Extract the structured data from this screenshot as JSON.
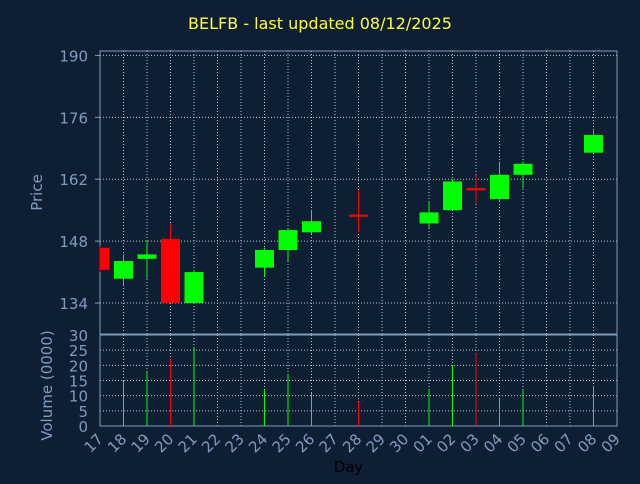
{
  "header": {
    "title": "BELFB - last updated 08/12/2025"
  },
  "colors": {
    "background": "#0f1f33",
    "axis": "#7f9cbf",
    "grid": "#b8c4d2",
    "up": "#00ff00",
    "down": "#ff0000",
    "title": "#ffff33",
    "text": "#7f9cbf"
  },
  "chart_data": {
    "type": "candlestick",
    "title": "BELFB - last updated 08/12/2025",
    "xlabel": "Day",
    "price_axis": {
      "ylabel": "Price",
      "ylim": [
        127,
        191
      ],
      "ticks": [
        134,
        148,
        162,
        176,
        190
      ]
    },
    "volume_axis": {
      "ylabel": "Volume (0000)",
      "ylim": [
        0,
        30
      ],
      "ticks": [
        0,
        5,
        10,
        15,
        20,
        25,
        30
      ]
    },
    "x_tick_labels": [
      "17",
      "18",
      "19",
      "20",
      "21",
      "22",
      "23",
      "24",
      "25",
      "26",
      "27",
      "28",
      "29",
      "30",
      "01",
      "02",
      "03",
      "04",
      "05",
      "06",
      "07",
      "08",
      "09"
    ],
    "grid": true,
    "candles": [
      {
        "day": "17",
        "open": 146.5,
        "high": 147.0,
        "low": 141.0,
        "close": 141.5,
        "volume": 0
      },
      {
        "day": "18",
        "open": 139.5,
        "high": 145.0,
        "low": 138.0,
        "close": 143.5,
        "volume": 15
      },
      {
        "day": "19",
        "open": 144.0,
        "high": 148.0,
        "low": 139.5,
        "close": 145.0,
        "volume": 18
      },
      {
        "day": "20",
        "open": 148.5,
        "high": 152.0,
        "low": 134.0,
        "close": 134.0,
        "volume": 22
      },
      {
        "day": "21",
        "open": 134.0,
        "high": 141.5,
        "low": 134.0,
        "close": 141.0,
        "volume": 26
      },
      {
        "day": "24",
        "open": 142.0,
        "high": 146.5,
        "low": 140.0,
        "close": 146.0,
        "volume": 12
      },
      {
        "day": "25",
        "open": 146.0,
        "high": 151.0,
        "low": 143.5,
        "close": 150.5,
        "volume": 17
      },
      {
        "day": "26",
        "open": 150.0,
        "high": 155.0,
        "low": 149.5,
        "close": 152.5,
        "volume": 11
      },
      {
        "day": "28",
        "open": 154.0,
        "high": 159.5,
        "low": 150.0,
        "close": 153.5,
        "volume": 8
      },
      {
        "day": "01",
        "open": 152.0,
        "high": 157.0,
        "low": 151.0,
        "close": 154.5,
        "volume": 12
      },
      {
        "day": "02",
        "open": 155.0,
        "high": 162.0,
        "low": 155.0,
        "close": 161.5,
        "volume": 20
      },
      {
        "day": "03",
        "open": 160.0,
        "high": 163.0,
        "low": 156.5,
        "close": 159.5,
        "volume": 24
      },
      {
        "day": "04",
        "open": 157.5,
        "high": 166.0,
        "low": 157.0,
        "close": 163.0,
        "volume": 9
      },
      {
        "day": "05",
        "open": 163.0,
        "high": 166.0,
        "low": 160.0,
        "close": 165.5,
        "volume": 12
      },
      {
        "day": "08",
        "open": 168.0,
        "high": 173.0,
        "low": 168.0,
        "close": 172.0,
        "volume": 13
      }
    ]
  }
}
